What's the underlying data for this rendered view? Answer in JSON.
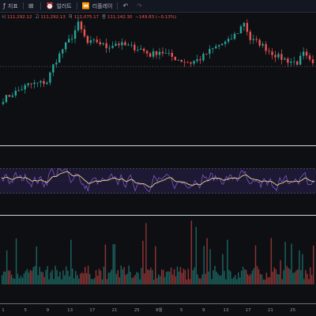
{
  "toolbar": {
    "indicators_label": "지표",
    "alert_label": "얼러트",
    "replay_label": "리플레이",
    "undo_icon": "undo-icon",
    "redo_icon": "redo-icon"
  },
  "legend": {
    "open_label": "시",
    "open_value": "111,292.12",
    "high_label": "고",
    "high_value": "111,292.13",
    "low_label": "저",
    "low_value": "111,075.17",
    "close_label": "종",
    "close_value": "111,142.30",
    "change_value": "−149.83 (−0.13%)"
  },
  "colors": {
    "up": "#26a69a",
    "down": "#ef5350",
    "rsi_line": "#7e57c2",
    "rsi_ma": "#e8d98a",
    "rsi_band": "#2a2150",
    "background": "#0e0f13"
  },
  "chart_data": {
    "type": "candlestick",
    "panes": [
      "price",
      "rsi",
      "volume"
    ],
    "x_tick_labels": [
      "1",
      "5",
      "9",
      "13",
      "17",
      "21",
      "25",
      "8월",
      "5",
      "9",
      "13",
      "17",
      "21",
      "25"
    ],
    "price": {
      "count": 100,
      "path_points": [
        [
          0,
          0.2
        ],
        [
          8,
          0.35
        ],
        [
          14,
          0.38
        ],
        [
          16,
          0.55
        ],
        [
          19,
          0.72
        ],
        [
          22,
          0.85
        ],
        [
          24,
          0.98
        ],
        [
          27,
          0.78
        ],
        [
          30,
          0.8
        ],
        [
          33,
          0.74
        ],
        [
          36,
          0.78
        ],
        [
          40,
          0.75
        ],
        [
          44,
          0.72
        ],
        [
          47,
          0.66
        ],
        [
          50,
          0.7
        ],
        [
          54,
          0.64
        ],
        [
          57,
          0.6
        ],
        [
          60,
          0.58
        ],
        [
          63,
          0.62
        ],
        [
          66,
          0.7
        ],
        [
          69,
          0.76
        ],
        [
          72,
          0.8
        ],
        [
          75,
          0.9
        ],
        [
          77,
          1.0
        ],
        [
          79,
          0.82
        ],
        [
          82,
          0.78
        ],
        [
          85,
          0.7
        ],
        [
          88,
          0.64
        ],
        [
          91,
          0.6
        ],
        [
          94,
          0.58
        ],
        [
          96,
          0.67
        ],
        [
          99,
          0.55
        ]
      ],
      "dashed_level_fraction": 0.54
    },
    "rsi": {
      "upper_band": 70,
      "lower_band": 30,
      "range": [
        0,
        100
      ]
    }
  }
}
